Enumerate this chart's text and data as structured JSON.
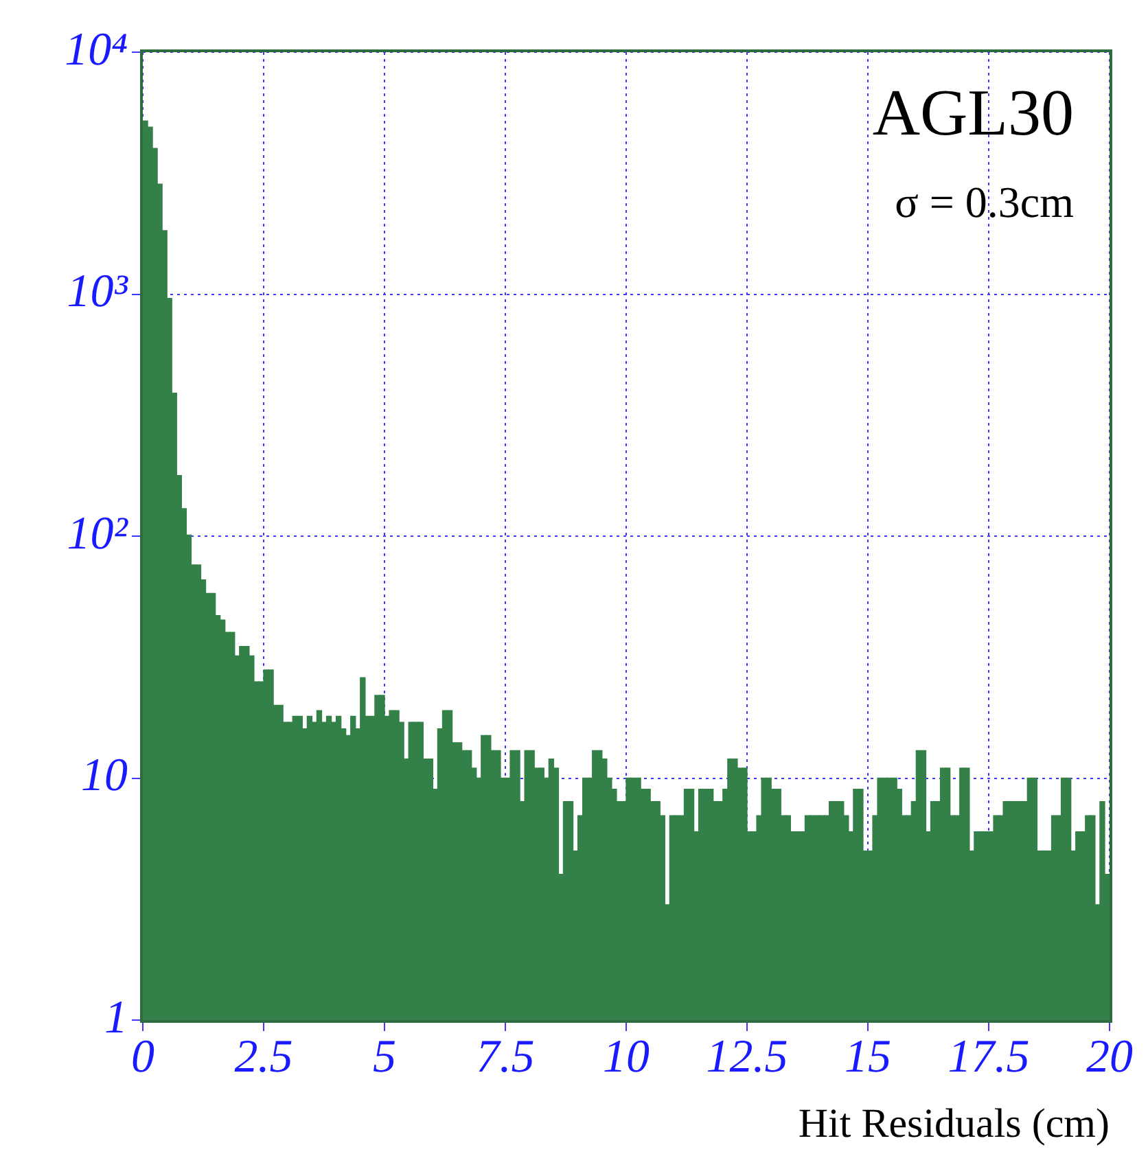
{
  "chart_data": {
    "type": "histogram",
    "xlabel": "Hit Residuals (cm)",
    "annotations": [
      "AGL30",
      "σ = 0.3cm"
    ],
    "bins": [
      0,
      0.1,
      0.2,
      0.3,
      0.4,
      0.5,
      0.6,
      0.7,
      0.8,
      0.9,
      1,
      1.1,
      1.2,
      1.3,
      1.4,
      1.5,
      1.6,
      1.7,
      1.8,
      1.9,
      2,
      2.1,
      2.2,
      2.3,
      2.4,
      2.5,
      2.6,
      2.7,
      2.8,
      2.9,
      3,
      3.1,
      3.2,
      3.3,
      3.4,
      3.5,
      3.6,
      3.7,
      3.8,
      3.9,
      4,
      4.1,
      4.2,
      4.3,
      4.4,
      4.5,
      4.6,
      4.7,
      4.8,
      4.9,
      5,
      5.1,
      5.2,
      5.3,
      5.4,
      5.5,
      5.6,
      5.7,
      5.8,
      5.9,
      6,
      6.1,
      6.2,
      6.3,
      6.4,
      6.5,
      6.6,
      6.7,
      6.8,
      6.9,
      7,
      7.1,
      7.2,
      7.3,
      7.4,
      7.5,
      7.6,
      7.7,
      7.8,
      7.9,
      8,
      8.1,
      8.2,
      8.3,
      8.4,
      8.5,
      8.6,
      8.7,
      8.8,
      8.9,
      9,
      9.1,
      9.2,
      9.3,
      9.4,
      9.5,
      9.6,
      9.7,
      9.8,
      9.9,
      10,
      10.1,
      10.2,
      10.3,
      10.4,
      10.5,
      10.6,
      10.7,
      10.8,
      10.9,
      11,
      11.1,
      11.2,
      11.3,
      11.4,
      11.5,
      11.6,
      11.7,
      11.8,
      11.9,
      12,
      12.1,
      12.2,
      12.3,
      12.4,
      12.5,
      12.6,
      12.7,
      12.8,
      12.9,
      13,
      13.1,
      13.2,
      13.3,
      13.4,
      13.5,
      13.6,
      13.7,
      13.8,
      13.9,
      14,
      14.1,
      14.2,
      14.3,
      14.4,
      14.5,
      14.6,
      14.7,
      14.8,
      14.9,
      15,
      15.1,
      15.2,
      15.3,
      15.4,
      15.5,
      15.6,
      15.7,
      15.8,
      15.9,
      16,
      16.1,
      16.2,
      16.3,
      16.4,
      16.5,
      16.6,
      16.7,
      16.8,
      16.9,
      17,
      17.1,
      17.2,
      17.3,
      17.4,
      17.5,
      17.6,
      17.7,
      17.8,
      17.9,
      18,
      18.1,
      18.2,
      18.3,
      18.4,
      18.5,
      18.6,
      18.7,
      18.8,
      18.9,
      19,
      19.1,
      19.2,
      19.3,
      19.4,
      19.5,
      19.6,
      19.7,
      19.8,
      19.9,
      20
    ],
    "values": [
      5200,
      4900,
      4000,
      2850,
      1830,
      960,
      390,
      178,
      130,
      101,
      76,
      76,
      66,
      58,
      58,
      47,
      45,
      40,
      40,
      32,
      35,
      35,
      32,
      25,
      25,
      28,
      28,
      20,
      20,
      17,
      17,
      18,
      18,
      16,
      18,
      17,
      19,
      17,
      18,
      17,
      18,
      16,
      15,
      18,
      16,
      26,
      18,
      18,
      22,
      22,
      18,
      19,
      19,
      17,
      12,
      17,
      17,
      17,
      12,
      12,
      9,
      16,
      19,
      19,
      14,
      14,
      13,
      13,
      11,
      10,
      15,
      15,
      13,
      13,
      10,
      10,
      13,
      13,
      8,
      13,
      13,
      11,
      11,
      10,
      12,
      11,
      4,
      8,
      8,
      5,
      7,
      10,
      10,
      13,
      13,
      12,
      10,
      9,
      8,
      8,
      10,
      10,
      10,
      9,
      9,
      8,
      8,
      7,
      3,
      7,
      7,
      7,
      9,
      9,
      6,
      9,
      9,
      9,
      8,
      8,
      9,
      12,
      12,
      11,
      11,
      6,
      6,
      7,
      10,
      10,
      9,
      9,
      7,
      7,
      6,
      6,
      6,
      7,
      7,
      7,
      7,
      7,
      8,
      8,
      8,
      7,
      6,
      9,
      9,
      5,
      5,
      7,
      10,
      10,
      10,
      10,
      9,
      7,
      7,
      8,
      13,
      13,
      6,
      8,
      8,
      11,
      11,
      7,
      7,
      11,
      11,
      5,
      6,
      6,
      6,
      6,
      7,
      7,
      8,
      8,
      8,
      8,
      8,
      10,
      10,
      5,
      5,
      5,
      7,
      7,
      10,
      10,
      5,
      6,
      6,
      7,
      7,
      3,
      8,
      4
    ],
    "color": "#348049",
    "xlim": [
      0,
      20
    ],
    "xticks": [
      0,
      2.5,
      5,
      7.5,
      10,
      12.5,
      15,
      17.5,
      20
    ],
    "ylim": [
      1,
      10000
    ],
    "yticks": [
      1,
      10,
      {
        "value": 100,
        "label": "10²"
      },
      {
        "value": 1000,
        "label": "10³"
      },
      {
        "value": 10000,
        "label": "10⁴"
      }
    ],
    "log": true,
    "grid": true
  }
}
